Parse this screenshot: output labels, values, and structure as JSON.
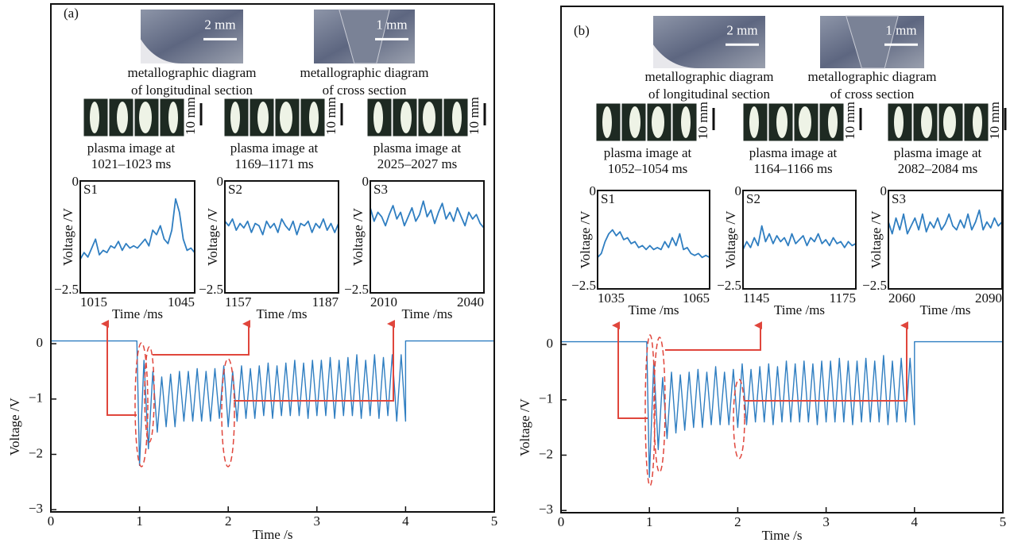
{
  "panels": [
    {
      "label": "(a)",
      "images": [
        {
          "scale": "2 mm",
          "caption": [
            "metallographic diagram",
            "of longitudinal section"
          ]
        },
        {
          "scale": "1 mm",
          "caption": [
            "metallographic diagram",
            "of cross section"
          ]
        }
      ],
      "plasma": [
        {
          "scale": "10 mm",
          "caption": [
            "plasma image at",
            "1021–1023 ms"
          ]
        },
        {
          "scale": "10 mm",
          "caption": [
            "plasma image at",
            "1169–1171 ms"
          ]
        },
        {
          "scale": "10 mm",
          "caption": [
            "plasma image at",
            "2025–2027 ms"
          ]
        }
      ]
    },
    {
      "label": "(b)",
      "images": [
        {
          "scale": "2 mm",
          "caption": [
            "metallographic diagram",
            "of longitudinal section"
          ]
        },
        {
          "scale": "1 mm",
          "caption": [
            "metallographic diagram",
            "of cross section"
          ]
        }
      ],
      "plasma": [
        {
          "scale": "10 mm",
          "caption": [
            "plasma image at",
            "1052–1054 ms"
          ]
        },
        {
          "scale": "10 mm",
          "caption": [
            "plasma image at",
            "1164–1166 ms"
          ]
        },
        {
          "scale": "10 mm",
          "caption": [
            "plasma image at",
            "2082–2084 ms"
          ]
        }
      ]
    }
  ],
  "chart_data": [
    {
      "type": "line",
      "color": "#2f7ec1",
      "xlabel": "Time /s",
      "ylabel": "Voltage /V",
      "xlim": [
        0,
        5
      ],
      "ylim": [
        -3.04,
        6.14
      ],
      "xticks": [
        0,
        1,
        2,
        3,
        4,
        5
      ],
      "yticks": [
        0,
        {
          "value": -1,
          "label": "−1"
        },
        {
          "value": -2,
          "label": "−2"
        },
        {
          "value": -3,
          "label": "−3"
        }
      ],
      "x": [
        0,
        0.97,
        1.0,
        1.05,
        1.1,
        1.15,
        1.2,
        1.25,
        1.3,
        1.35,
        1.4,
        1.45,
        1.5,
        1.55,
        1.6,
        1.65,
        1.7,
        1.75,
        1.8,
        1.85,
        1.9,
        1.95,
        2.0,
        2.05,
        2.1,
        2.15,
        2.2,
        2.25,
        2.3,
        2.35,
        2.4,
        2.45,
        2.5,
        2.55,
        2.6,
        2.65,
        2.7,
        2.75,
        2.8,
        2.85,
        2.9,
        2.95,
        3.0,
        3.05,
        3.1,
        3.15,
        3.2,
        3.25,
        3.3,
        3.35,
        3.4,
        3.45,
        3.5,
        3.55,
        3.6,
        3.65,
        3.7,
        3.75,
        3.8,
        3.85,
        3.9,
        3.95,
        4.0,
        4.0,
        5
      ],
      "values": [
        0.05,
        0.05,
        -2.2,
        -0.3,
        -1.9,
        -0.5,
        -1.6,
        -0.6,
        -1.5,
        -0.55,
        -1.5,
        -0.5,
        -1.4,
        -0.5,
        -1.4,
        -0.45,
        -1.4,
        -0.5,
        -1.4,
        -0.45,
        -1.35,
        -0.4,
        -1.5,
        -0.5,
        -1.4,
        -0.4,
        -1.35,
        -0.45,
        -1.35,
        -0.4,
        -1.3,
        -0.35,
        -1.35,
        -0.4,
        -1.3,
        -0.35,
        -1.3,
        -0.3,
        -1.3,
        -0.35,
        -1.35,
        -0.3,
        -1.3,
        -0.3,
        -1.3,
        -0.25,
        -1.35,
        -0.3,
        -1.3,
        -0.25,
        -1.3,
        -0.2,
        -1.35,
        -0.3,
        -1.3,
        -0.2,
        -1.35,
        -0.25,
        -1.3,
        -0.2,
        -1.4,
        -0.2,
        -1.4,
        0.05,
        0.05
      ]
    },
    {
      "type": "line",
      "title": "S1",
      "color": "#2f7ec1",
      "xlabel": "Time /ms",
      "ylabel": "Voltage /V",
      "xlim": [
        1015,
        1045
      ],
      "ylim": [
        -2.5,
        0
      ],
      "xticks": [
        1015,
        1045
      ],
      "yticks": [
        0,
        {
          "value": -2.5,
          "label": "−2.5"
        }
      ],
      "x": [
        1015,
        1016,
        1017,
        1018,
        1019,
        1020,
        1021,
        1022,
        1023,
        1024,
        1025,
        1026,
        1027,
        1028,
        1029,
        1030,
        1031,
        1032,
        1033,
        1034,
        1035,
        1036,
        1037,
        1038,
        1039,
        1040,
        1041,
        1042,
        1043,
        1044,
        1045
      ],
      "values": [
        -1.75,
        -1.6,
        -1.7,
        -1.5,
        -1.3,
        -1.65,
        -1.55,
        -1.6,
        -1.45,
        -1.5,
        -1.35,
        -1.55,
        -1.4,
        -1.5,
        -1.45,
        -1.5,
        -1.4,
        -1.3,
        -1.45,
        -1.1,
        -1.2,
        -1.0,
        -1.3,
        -1.4,
        -1.1,
        -0.4,
        -0.7,
        -1.3,
        -1.55,
        -1.5,
        -1.6
      ]
    },
    {
      "type": "line",
      "title": "S2",
      "color": "#2f7ec1",
      "xlabel": "Time /ms",
      "ylabel": "Voltage /V",
      "xlim": [
        1157,
        1187
      ],
      "ylim": [
        -2.5,
        0
      ],
      "xticks": [
        1157,
        1187
      ],
      "yticks": [
        0,
        {
          "value": -2.5,
          "label": "−2.5"
        }
      ],
      "x": [
        1157,
        1158,
        1159,
        1160,
        1161,
        1162,
        1163,
        1164,
        1165,
        1166,
        1167,
        1168,
        1169,
        1170,
        1171,
        1172,
        1173,
        1174,
        1175,
        1176,
        1177,
        1178,
        1179,
        1180,
        1181,
        1182,
        1183,
        1184,
        1185,
        1186,
        1187
      ],
      "values": [
        -0.9,
        -1.0,
        -0.85,
        -1.1,
        -0.95,
        -1.05,
        -0.9,
        -1.15,
        -0.95,
        -1.0,
        -1.2,
        -0.9,
        -1.05,
        -0.95,
        -1.15,
        -0.85,
        -1.0,
        -1.1,
        -0.9,
        -1.2,
        -0.95,
        -1.0,
        -0.9,
        -1.15,
        -0.95,
        -1.05,
        -0.85,
        -1.1,
        -0.95,
        -1.15,
        -0.95
      ]
    },
    {
      "type": "line",
      "title": "S3",
      "color": "#2f7ec1",
      "xlabel": "Time /ms",
      "ylabel": "Voltage /V",
      "xlim": [
        2010,
        2040
      ],
      "ylim": [
        -2.5,
        0
      ],
      "xticks": [
        2010,
        2040
      ],
      "yticks": [
        0,
        {
          "value": -2.5,
          "label": "−2.5"
        }
      ],
      "x": [
        2010,
        2011,
        2012,
        2013,
        2014,
        2015,
        2016,
        2017,
        2018,
        2019,
        2020,
        2021,
        2022,
        2023,
        2024,
        2025,
        2026,
        2027,
        2028,
        2029,
        2030,
        2031,
        2032,
        2033,
        2034,
        2035,
        2036,
        2037,
        2038,
        2039,
        2040
      ],
      "values": [
        -0.6,
        -0.9,
        -0.7,
        -0.8,
        -1.0,
        -0.75,
        -0.55,
        -0.85,
        -0.7,
        -1.0,
        -0.8,
        -0.6,
        -0.9,
        -0.75,
        -0.45,
        -0.8,
        -0.65,
        -0.95,
        -0.7,
        -0.5,
        -0.85,
        -0.7,
        -0.9,
        -0.6,
        -0.8,
        -1.0,
        -0.7,
        -0.85,
        -0.75,
        -0.95,
        -1.05
      ]
    },
    {
      "type": "line",
      "color": "#2f7ec1",
      "xlabel": "Time /s",
      "ylabel": "Voltage /V",
      "xlim": [
        0,
        5
      ],
      "ylim": [
        -3.04,
        6.11
      ],
      "xticks": [
        0,
        1,
        2,
        3,
        4,
        5
      ],
      "yticks": [
        0,
        {
          "value": -1,
          "label": "−1"
        },
        {
          "value": -2,
          "label": "−2"
        },
        {
          "value": -3,
          "label": "−3"
        }
      ],
      "x": [
        0,
        0.97,
        1.0,
        1.05,
        1.1,
        1.15,
        1.2,
        1.25,
        1.3,
        1.35,
        1.4,
        1.45,
        1.5,
        1.55,
        1.6,
        1.65,
        1.7,
        1.75,
        1.8,
        1.85,
        1.9,
        1.95,
        2.0,
        2.05,
        2.1,
        2.15,
        2.2,
        2.25,
        2.3,
        2.35,
        2.4,
        2.45,
        2.5,
        2.55,
        2.6,
        2.65,
        2.7,
        2.75,
        2.8,
        2.85,
        2.9,
        2.95,
        3.0,
        3.05,
        3.1,
        3.15,
        3.2,
        3.25,
        3.3,
        3.35,
        3.4,
        3.45,
        3.5,
        3.55,
        3.6,
        3.65,
        3.7,
        3.75,
        3.8,
        3.85,
        3.9,
        3.95,
        4.0,
        4.0,
        5
      ],
      "values": [
        0.05,
        0.05,
        -2.4,
        -0.3,
        -1.9,
        -0.6,
        -1.7,
        -0.5,
        -1.6,
        -0.55,
        -1.55,
        -0.5,
        -1.5,
        -0.45,
        -1.5,
        -0.5,
        -1.45,
        -0.4,
        -1.45,
        -0.5,
        -1.45,
        -0.45,
        -1.5,
        -0.35,
        -1.45,
        -0.45,
        -1.4,
        -0.4,
        -1.4,
        -0.35,
        -1.45,
        -0.4,
        -1.4,
        -0.3,
        -1.4,
        -0.35,
        -1.4,
        -0.3,
        -1.4,
        -0.35,
        -1.45,
        -0.3,
        -1.4,
        -0.3,
        -1.4,
        -0.25,
        -1.4,
        -0.3,
        -1.45,
        -0.3,
        -1.4,
        -0.25,
        -1.4,
        -0.3,
        -1.4,
        -0.2,
        -1.45,
        -0.3,
        -1.4,
        -0.25,
        -1.4,
        -0.25,
        -1.45,
        0.05,
        0.05
      ]
    },
    {
      "type": "line",
      "title": "S1",
      "color": "#2f7ec1",
      "xlabel": "Time /ms",
      "ylabel": "Voltage /V",
      "xlim": [
        1035,
        1065
      ],
      "ylim": [
        -2.5,
        0
      ],
      "xticks": [
        1035,
        1065
      ],
      "yticks": [
        0,
        {
          "value": -2.5,
          "label": "−2.5"
        }
      ],
      "x": [
        1035,
        1036,
        1037,
        1038,
        1039,
        1040,
        1041,
        1042,
        1043,
        1044,
        1045,
        1046,
        1047,
        1048,
        1049,
        1050,
        1051,
        1052,
        1053,
        1054,
        1055,
        1056,
        1057,
        1058,
        1059,
        1060,
        1061,
        1062,
        1063,
        1064,
        1065
      ],
      "values": [
        -1.7,
        -1.6,
        -1.3,
        -1.1,
        -1.0,
        -1.15,
        -1.05,
        -1.25,
        -1.2,
        -1.35,
        -1.3,
        -1.45,
        -1.4,
        -1.5,
        -1.4,
        -1.5,
        -1.45,
        -1.5,
        -1.3,
        -1.45,
        -1.2,
        -1.4,
        -1.1,
        -1.5,
        -1.45,
        -1.6,
        -1.65,
        -1.6,
        -1.7,
        -1.65,
        -1.7
      ]
    },
    {
      "type": "line",
      "title": "S2",
      "color": "#2f7ec1",
      "xlabel": "Time /ms",
      "ylabel": "Voltage /V",
      "xlim": [
        1145,
        1175
      ],
      "ylim": [
        -2.5,
        0
      ],
      "xticks": [
        1145,
        1175
      ],
      "yticks": [
        0,
        {
          "value": -2.5,
          "label": "−2.5"
        }
      ],
      "x": [
        1145,
        1146,
        1147,
        1148,
        1149,
        1150,
        1151,
        1152,
        1153,
        1154,
        1155,
        1156,
        1157,
        1158,
        1159,
        1160,
        1161,
        1162,
        1163,
        1164,
        1165,
        1166,
        1167,
        1168,
        1169,
        1170,
        1171,
        1172,
        1173,
        1174,
        1175
      ],
      "values": [
        -1.5,
        -1.3,
        -1.45,
        -1.2,
        -1.4,
        -0.9,
        -1.3,
        -1.1,
        -1.35,
        -1.15,
        -1.3,
        -1.2,
        -1.4,
        -1.1,
        -1.35,
        -1.25,
        -1.15,
        -1.4,
        -1.2,
        -1.3,
        -1.1,
        -1.35,
        -1.25,
        -1.4,
        -1.2,
        -1.35,
        -1.3,
        -1.45,
        -1.3,
        -1.4,
        -1.35
      ]
    },
    {
      "type": "line",
      "title": "S3",
      "color": "#2f7ec1",
      "xlabel": "Time /ms",
      "ylabel": "Voltage /V",
      "xlim": [
        2060,
        2090
      ],
      "ylim": [
        -2.5,
        0
      ],
      "xticks": [
        2060,
        2090
      ],
      "yticks": [
        0,
        {
          "value": -2.5,
          "label": "−2.5"
        }
      ],
      "x": [
        2060,
        2061,
        2062,
        2063,
        2064,
        2065,
        2066,
        2067,
        2068,
        2069,
        2070,
        2071,
        2072,
        2073,
        2074,
        2075,
        2076,
        2077,
        2078,
        2079,
        2080,
        2081,
        2082,
        2083,
        2084,
        2085,
        2086,
        2087,
        2088,
        2089,
        2090
      ],
      "values": [
        -0.8,
        -1.1,
        -0.7,
        -1.0,
        -0.6,
        -1.1,
        -0.9,
        -0.7,
        -1.0,
        -0.6,
        -1.05,
        -0.8,
        -0.95,
        -0.7,
        -1.0,
        -0.85,
        -0.6,
        -0.9,
        -1.0,
        -0.75,
        -0.95,
        -0.6,
        -1.0,
        -0.8,
        -0.5,
        -1.0,
        -0.8,
        -0.95,
        -0.7,
        -0.9,
        -0.8
      ]
    }
  ]
}
